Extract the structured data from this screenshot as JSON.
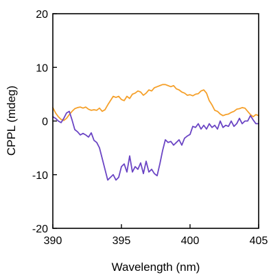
{
  "chart_data": {
    "type": "line",
    "title": "",
    "xlabel": "Wavelength (nm)",
    "ylabel": "CPPL (mdeg)",
    "xlim": [
      390,
      405
    ],
    "ylim": [
      -20,
      20
    ],
    "x_ticks": [
      390,
      395,
      400,
      405
    ],
    "y_ticks": [
      -20,
      -10,
      0,
      10,
      20
    ],
    "x_tick_labels": [
      "390",
      "395",
      "400",
      "405"
    ],
    "y_tick_labels": [
      "-20",
      "-10",
      "0",
      "10",
      "20"
    ],
    "grid": false,
    "legend": "none",
    "series": [
      {
        "color": "#f5a02a",
        "x": [
          390,
          390.2,
          390.4,
          390.6,
          390.8,
          391,
          391.2,
          391.4,
          391.6,
          391.8,
          392,
          392.2,
          392.4,
          392.6,
          392.8,
          393,
          393.2,
          393.4,
          393.6,
          393.8,
          394,
          394.2,
          394.4,
          394.6,
          394.8,
          395,
          395.2,
          395.4,
          395.6,
          395.8,
          396,
          396.2,
          396.4,
          396.6,
          396.8,
          397,
          397.2,
          397.4,
          397.6,
          397.8,
          398,
          398.2,
          398.4,
          398.6,
          398.8,
          399,
          399.2,
          399.4,
          399.6,
          399.8,
          400,
          400.2,
          400.4,
          400.6,
          400.8,
          401,
          401.2,
          401.4,
          401.6,
          401.8,
          402,
          402.2,
          402.4,
          402.6,
          402.8,
          403,
          403.2,
          403.4,
          403.6,
          403.8,
          404,
          404.2,
          404.4,
          404.6,
          404.8,
          405
        ],
        "y": [
          2.5,
          1.5,
          0.8,
          0.3,
          0.1,
          0.5,
          1.2,
          1.8,
          2.3,
          2.5,
          2.6,
          2.4,
          2.6,
          2.2,
          2.0,
          2.1,
          2.0,
          2.4,
          1.8,
          2.1,
          3.0,
          3.8,
          4.6,
          4.4,
          4.6,
          4.0,
          3.8,
          4.6,
          4.2,
          5.0,
          5.2,
          5.6,
          5.4,
          4.8,
          5.2,
          5.8,
          5.6,
          6.2,
          6.4,
          6.6,
          6.8,
          6.8,
          6.6,
          6.4,
          6.6,
          6.0,
          5.8,
          5.4,
          5.2,
          4.8,
          4.9,
          4.7,
          5.0,
          5.1,
          5.6,
          5.8,
          5.2,
          3.8,
          3.0,
          2.0,
          1.8,
          1.3,
          1.0,
          1.2,
          1.3,
          1.6,
          1.8,
          2.2,
          2.3,
          2.5,
          2.4,
          1.8,
          1.2,
          0.8,
          1.2,
          1.0
        ]
      },
      {
        "color": "#6a44c4",
        "x": [
          390,
          390.2,
          390.4,
          390.6,
          390.8,
          391,
          391.2,
          391.4,
          391.6,
          391.8,
          392,
          392.2,
          392.4,
          392.6,
          392.8,
          393,
          393.2,
          393.4,
          393.6,
          393.8,
          394,
          394.2,
          394.4,
          394.6,
          394.8,
          395,
          395.2,
          395.4,
          395.6,
          395.8,
          396,
          396.2,
          396.4,
          396.6,
          396.8,
          397,
          397.2,
          397.4,
          397.6,
          397.8,
          398,
          398.2,
          398.4,
          398.6,
          398.8,
          399,
          399.2,
          399.4,
          399.6,
          399.8,
          400,
          400.2,
          400.4,
          400.6,
          400.8,
          401,
          401.2,
          401.4,
          401.6,
          401.8,
          402,
          402.2,
          402.4,
          402.6,
          402.8,
          403,
          403.2,
          403.4,
          403.6,
          403.8,
          404,
          404.2,
          404.4,
          404.6,
          404.8,
          405
        ],
        "y": [
          0.8,
          0.5,
          0.0,
          -0.3,
          0.5,
          1.5,
          1.8,
          0.2,
          -1.6,
          -2.0,
          -2.6,
          -2.3,
          -2.6,
          -3.0,
          -2.2,
          -3.6,
          -4.0,
          -5.0,
          -7.0,
          -9.0,
          -11.0,
          -10.5,
          -10.0,
          -11.0,
          -10.5,
          -8.5,
          -8.0,
          -9.5,
          -6.5,
          -9.5,
          -8.5,
          -9.0,
          -7.8,
          -9.8,
          -7.5,
          -9.5,
          -9.0,
          -9.8,
          -10.2,
          -8.0,
          -5.5,
          -3.5,
          -4.0,
          -3.8,
          -4.5,
          -4.0,
          -3.5,
          -4.5,
          -3.2,
          -2.8,
          -2.5,
          -1.0,
          -1.2,
          -0.5,
          -1.5,
          -0.8,
          -1.5,
          -0.5,
          -1.2,
          -0.8,
          -1.5,
          0.0,
          -1.2,
          -0.8,
          -1.0,
          0.0,
          -1.0,
          -0.5,
          0.5,
          -0.5,
          0.0,
          0.0,
          1.0,
          0.2,
          -0.5,
          -0.5
        ]
      }
    ]
  }
}
